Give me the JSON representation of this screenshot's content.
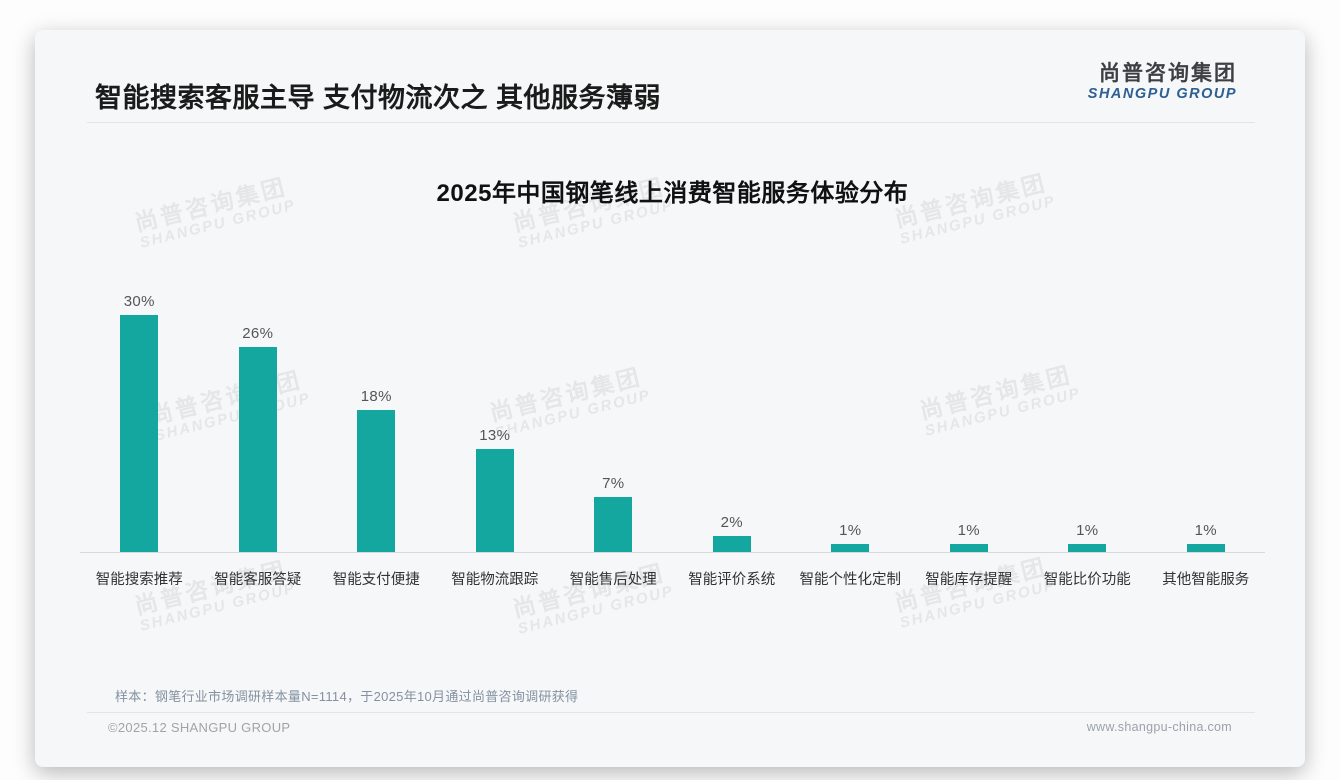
{
  "header": {
    "title": "智能搜索客服主导 支付物流次之 其他服务薄弱",
    "logo": {
      "chinese": "尚普咨询集团",
      "english": "SHANGPU GROUP"
    }
  },
  "watermark": {
    "line1": "尚普咨询集团",
    "line2": "SHANGPU GROUP"
  },
  "chart_data": {
    "type": "bar",
    "title": "2025年中国钢笔线上消费智能服务体验分布",
    "categories": [
      "智能搜索推荐",
      "智能客服答疑",
      "智能支付便捷",
      "智能物流跟踪",
      "智能售后处理",
      "智能评价系统",
      "智能个性化定制",
      "智能库存提醒",
      "智能比价功能",
      "其他智能服务"
    ],
    "values": [
      30,
      26,
      18,
      13,
      7,
      2,
      1,
      1,
      1,
      1
    ],
    "value_labels": [
      "30%",
      "26%",
      "18%",
      "13%",
      "7%",
      "2%",
      "1%",
      "1%",
      "1%",
      "1%"
    ],
    "bar_color": "#14A79F",
    "xlabel": "",
    "ylabel": "",
    "ylim": [
      0,
      30
    ],
    "grid": false,
    "legend": false
  },
  "footnote": {
    "sample": "样本：钢笔行业市场调研样本量N=1114，于2025年10月通过尚普咨询调研获得"
  },
  "footer": {
    "copyright": "©2025.12 SHANGPU GROUP",
    "website": "www.shangpu-china.com"
  },
  "colors": {
    "bar": "#14A79F",
    "logo_blue": "#2D5F92",
    "card_background": "#F6F7F8"
  }
}
